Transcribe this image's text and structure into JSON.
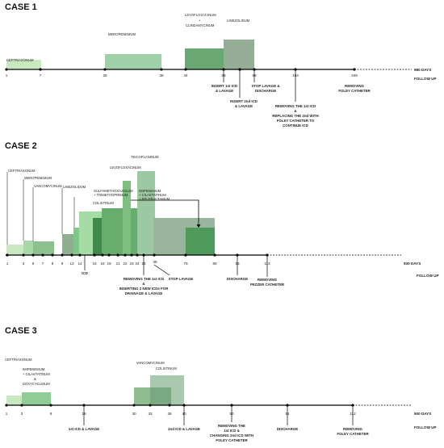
{
  "cases": [
    {
      "title": "CASE 1",
      "end_label": "980 DAYS",
      "follow_up": "FOLLOW UP",
      "ticks": [
        "1",
        "7",
        "28",
        "38",
        "44",
        "59",
        "69",
        "104",
        "349"
      ],
      "drugs": [
        "CEFTRIAXONUM",
        "MEROPENEMUM",
        "LEVOFLOXACINUM",
        "+",
        "CLINDAMYCINUM",
        "LINEZOLIDUM"
      ],
      "events": [
        [
          "INSERT 1st ICD",
          "& LAVAGE"
        ],
        [
          "INSERT 2nd ICD",
          "& LAVAGE"
        ],
        [
          "STOP LAVAGE &",
          "DISCHARGE"
        ],
        [
          "REMOVING THE 1st ICD",
          "&",
          "REPLACING THE 2nd WITH",
          "FOLEY CATHETER TO",
          "CONTINUE ICD"
        ],
        [
          "REMOVING",
          "FOLEY CATHETER"
        ]
      ]
    },
    {
      "title": "CASE 2",
      "end_label": "930 DAYS",
      "follow_up": "FOLLOW UP",
      "ticks": [
        "1",
        "3",
        "6",
        "7",
        "8",
        "9",
        "13",
        "14",
        "16",
        "18",
        "19",
        "21",
        "22",
        "23",
        "24",
        "26",
        "38",
        "79",
        "85",
        "93",
        "114"
      ],
      "drugs": [
        "CEFTRIAXONUM",
        "MEROPENEMUM",
        "VANCOMYCINUM",
        "LINEZOLIDUM",
        "SULFAMETHOXAZOLUM",
        "+ TRIMETHOPRIMUM",
        "COLISTINUM",
        "IMIPENEMUM",
        "+ CILASTATINUM",
        "+ RELEBACTAMUM",
        "LEVOFLOXACINUM",
        "TEICOPLANINUM"
      ],
      "events": [
        [
          "ICD"
        ],
        [
          "REMOVING THE 1st ICD",
          "&",
          "INSERTING 2 NEW ICDs FOR",
          "DRAINAGE & LAVAGE"
        ],
        [
          "STOP LAVAGE"
        ],
        [
          "DISCHARGE"
        ],
        [
          "REMOVING",
          "PEZZER CATHETER"
        ]
      ]
    },
    {
      "title": "CASE 3",
      "end_label": "900 DAYS",
      "follow_up": "FOLLOW UP",
      "ticks": [
        "1",
        "3",
        "9",
        "18",
        "30",
        "33",
        "38",
        "40",
        "50",
        "51",
        "112"
      ],
      "drugs": [
        "CEFTRIAXONUM",
        "IMIPENEMUM",
        "+ CILASTATINUM",
        "&",
        "DOXYCYCLINUM",
        "VANCOMYCINUM",
        "COLISTINUM"
      ],
      "events": [
        [
          "1st ICD & LAVAGE"
        ],
        [
          "2nd ICD & LAVAGE"
        ],
        [
          "REMOVING THE",
          "1st ICD &",
          "CHANGING 2nd ICD WITH",
          "FOLEY CATHETER"
        ],
        [
          "DISCHARGE"
        ],
        [
          "REMOVING",
          "FOLEY CATHETER"
        ]
      ]
    }
  ]
}
